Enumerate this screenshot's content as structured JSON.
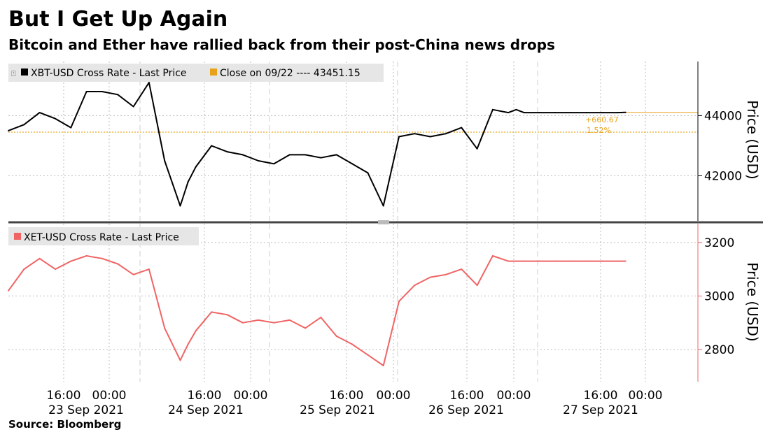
{
  "title": "But I Get Up Again",
  "subtitle": "Bitcoin and Ether have rallied back from their post-China news drops",
  "source": "Source: Bloomberg",
  "colors": {
    "btc": "#000000",
    "eth": "#f06464",
    "ref": "#e8a21a",
    "grid": "#bdbdbd"
  },
  "chart_data": [
    {
      "type": "line",
      "panel": "top",
      "legend": [
        "XBT-USD Cross Rate - Last Price",
        "Close on 09/22 ---- 43451.15"
      ],
      "ylabel": "Price (USD)",
      "ylim": [
        40500,
        45800
      ],
      "yticks": [
        42000,
        44000
      ],
      "reference_close": 43451.15,
      "annotations": {
        "change": "+660.67",
        "change_pct": "1.52%"
      },
      "x_hours": [
        0,
        4,
        8,
        12,
        16,
        20,
        24,
        28,
        32,
        36,
        40,
        44,
        46,
        48,
        52,
        56,
        60,
        64,
        68,
        72,
        76,
        80,
        84,
        88,
        92,
        96,
        100,
        104,
        108,
        112,
        116,
        120,
        124,
        128,
        130,
        132,
        136,
        140,
        144,
        148,
        152,
        156,
        158
      ],
      "values": [
        43500,
        43700,
        44100,
        43900,
        43600,
        44800,
        44800,
        44700,
        44300,
        45100,
        42500,
        41000,
        41800,
        42300,
        43000,
        42800,
        42700,
        42500,
        42400,
        42700,
        42700,
        42600,
        42700,
        42400,
        42100,
        41000,
        43300,
        43400,
        43300,
        43400,
        43600,
        42900,
        44200,
        44100,
        44200,
        44100,
        44100,
        44100,
        44100,
        44100,
        44100,
        44100,
        44110
      ]
    },
    {
      "type": "line",
      "panel": "bottom",
      "legend": [
        "XET-USD Cross Rate - Last Price"
      ],
      "ylabel": "Price (USD)",
      "ylim": [
        2680,
        3270
      ],
      "yticks": [
        2800,
        3000,
        3200
      ],
      "x_hours": [
        0,
        4,
        8,
        12,
        16,
        20,
        24,
        28,
        32,
        36,
        40,
        44,
        46,
        48,
        52,
        56,
        60,
        64,
        68,
        72,
        76,
        80,
        84,
        88,
        92,
        96,
        100,
        104,
        108,
        112,
        116,
        120,
        124,
        128,
        130,
        132,
        136,
        140,
        144,
        148,
        152,
        156,
        158
      ],
      "values": [
        3020,
        3100,
        3140,
        3100,
        3130,
        3150,
        3140,
        3120,
        3080,
        3100,
        2880,
        2760,
        2820,
        2870,
        2940,
        2930,
        2900,
        2910,
        2900,
        2910,
        2880,
        2920,
        2850,
        2820,
        2780,
        2740,
        2980,
        3040,
        3070,
        3080,
        3100,
        3040,
        3150,
        3130,
        3130,
        3130,
        3130,
        3130,
        3130,
        3130,
        3130,
        3130,
        3130
      ]
    }
  ],
  "xaxis": {
    "time_labels": [
      "16:00",
      "00:00",
      "16:00",
      "00:00",
      "16:00",
      "00:00",
      "16:00",
      "00:00",
      "16:00",
      "00:00"
    ],
    "date_labels": [
      "23 Sep 2021",
      "24 Sep 2021",
      "25 Sep 2021",
      "26 Sep 2021",
      "27 Sep 2021"
    ]
  }
}
